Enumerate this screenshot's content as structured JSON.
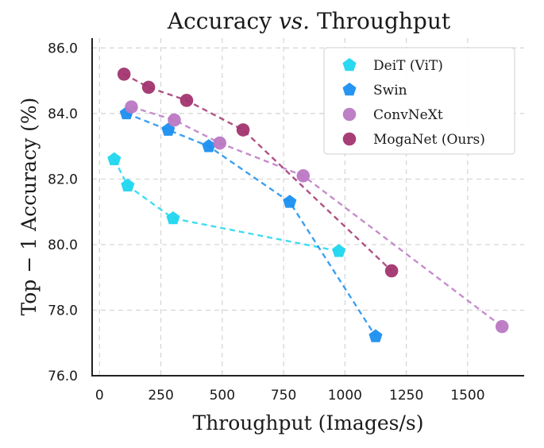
{
  "chart_data": {
    "type": "scatter",
    "title": "Accuracy vs. Throughput",
    "title_parts": {
      "a": "Accuracy ",
      "vs": "vs.",
      "b": " Throughput"
    },
    "xlabel": "Throughput (Images/s)",
    "ylabel": "Top − 1 Accuracy (%)",
    "xlim": [
      -30,
      1730
    ],
    "ylim": [
      76,
      86.3
    ],
    "xticks": [
      0,
      250,
      500,
      750,
      1000,
      1250,
      1500
    ],
    "xtick_labels": [
      "0",
      "250",
      "500",
      "750",
      "1000",
      "1250",
      "1500"
    ],
    "yticks": [
      76,
      78,
      80,
      82,
      84,
      86
    ],
    "ytick_labels": [
      "76.0",
      "78.0",
      "80.0",
      "82.0",
      "84.0",
      "86.0"
    ],
    "grid": true,
    "legend_position": "top-right",
    "series": [
      {
        "name": "DeiT (ViT)",
        "color": "#1fd6ef",
        "marker": "pentagon",
        "x": [
          60,
          115,
          300,
          975
        ],
        "y": [
          82.6,
          81.8,
          80.8,
          79.8
        ]
      },
      {
        "name": "Swin",
        "color": "#1a8ff0",
        "marker": "pentagon",
        "x": [
          110,
          280,
          445,
          775,
          1125
        ],
        "y": [
          84.0,
          83.5,
          83.0,
          81.3,
          77.2
        ]
      },
      {
        "name": "ConvNeXt",
        "color": "#bb78c3",
        "marker": "circle",
        "x": [
          130,
          305,
          490,
          830,
          1640
        ],
        "y": [
          84.2,
          83.8,
          83.1,
          82.1,
          77.5
        ]
      },
      {
        "name": "MogaNet (Ours)",
        "color": "#a2346f",
        "marker": "circle",
        "x": [
          100,
          200,
          355,
          585,
          1190
        ],
        "y": [
          85.2,
          84.8,
          84.4,
          83.5,
          79.2
        ]
      }
    ]
  }
}
